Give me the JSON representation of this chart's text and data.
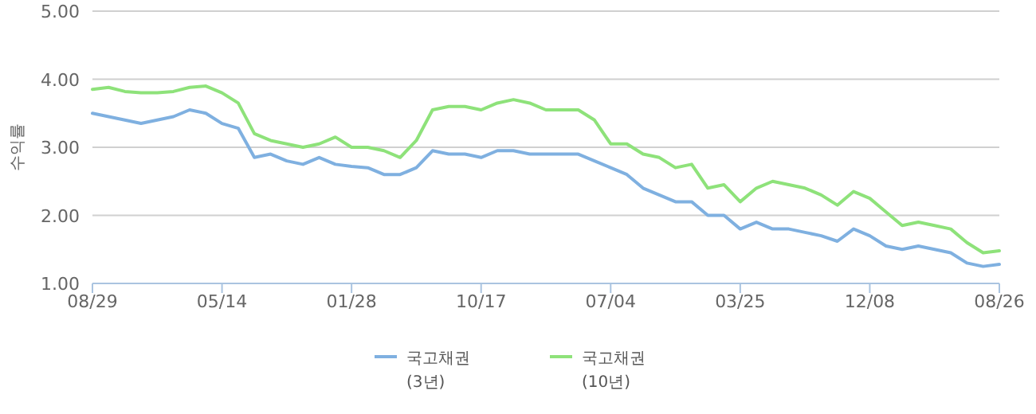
{
  "chart_data": {
    "type": "line",
    "ylabel": "수익률",
    "categories": [
      "08/29",
      null,
      null,
      null,
      null,
      null,
      null,
      null,
      "05/14",
      null,
      null,
      null,
      null,
      null,
      null,
      null,
      "01/28",
      null,
      null,
      null,
      null,
      null,
      null,
      null,
      "10/17",
      null,
      null,
      null,
      null,
      null,
      null,
      null,
      "07/04",
      null,
      null,
      null,
      null,
      null,
      null,
      null,
      "03/25",
      null,
      null,
      null,
      null,
      null,
      null,
      null,
      "12/08",
      null,
      null,
      null,
      null,
      null,
      null,
      null,
      "08/26"
    ],
    "series": [
      {
        "name": "국고채권 (3년)",
        "color": "#7fb0e0",
        "values": [
          3.5,
          3.45,
          3.4,
          3.35,
          3.4,
          3.45,
          3.55,
          3.5,
          3.35,
          3.28,
          2.85,
          2.9,
          2.8,
          2.75,
          2.85,
          2.75,
          2.72,
          2.7,
          2.6,
          2.6,
          2.7,
          2.95,
          2.9,
          2.9,
          2.85,
          2.95,
          2.95,
          2.9,
          2.9,
          2.9,
          2.9,
          2.8,
          2.7,
          2.6,
          2.4,
          2.3,
          2.2,
          2.2,
          2.0,
          2.0,
          1.8,
          1.9,
          1.8,
          1.8,
          1.75,
          1.7,
          1.62,
          1.8,
          1.7,
          1.55,
          1.5,
          1.55,
          1.5,
          1.45,
          1.3,
          1.25,
          1.28
        ]
      },
      {
        "name": "국고채권 (10년)",
        "color": "#8ee27a",
        "values": [
          3.85,
          3.88,
          3.82,
          3.8,
          3.8,
          3.82,
          3.88,
          3.9,
          3.8,
          3.65,
          3.2,
          3.1,
          3.05,
          3.0,
          3.05,
          3.15,
          3.0,
          3.0,
          2.95,
          2.85,
          3.1,
          3.55,
          3.6,
          3.6,
          3.55,
          3.65,
          3.7,
          3.65,
          3.55,
          3.55,
          3.55,
          3.4,
          3.05,
          3.05,
          2.9,
          2.85,
          2.7,
          2.75,
          2.4,
          2.45,
          2.2,
          2.4,
          2.5,
          2.45,
          2.4,
          2.3,
          2.15,
          2.35,
          2.25,
          2.05,
          1.85,
          1.9,
          1.85,
          1.8,
          1.6,
          1.45,
          1.48
        ]
      }
    ],
    "ylim": [
      1,
      5
    ],
    "yticks": [
      {
        "value": 1,
        "label": "1.00"
      },
      {
        "value": 2,
        "label": "2.00"
      },
      {
        "value": 3,
        "label": "3.00"
      },
      {
        "value": 4,
        "label": "4.00"
      },
      {
        "value": 5,
        "label": "5.00"
      }
    ],
    "grid": "y",
    "legend": "bottom",
    "marker": "none",
    "line_style": "solid"
  }
}
